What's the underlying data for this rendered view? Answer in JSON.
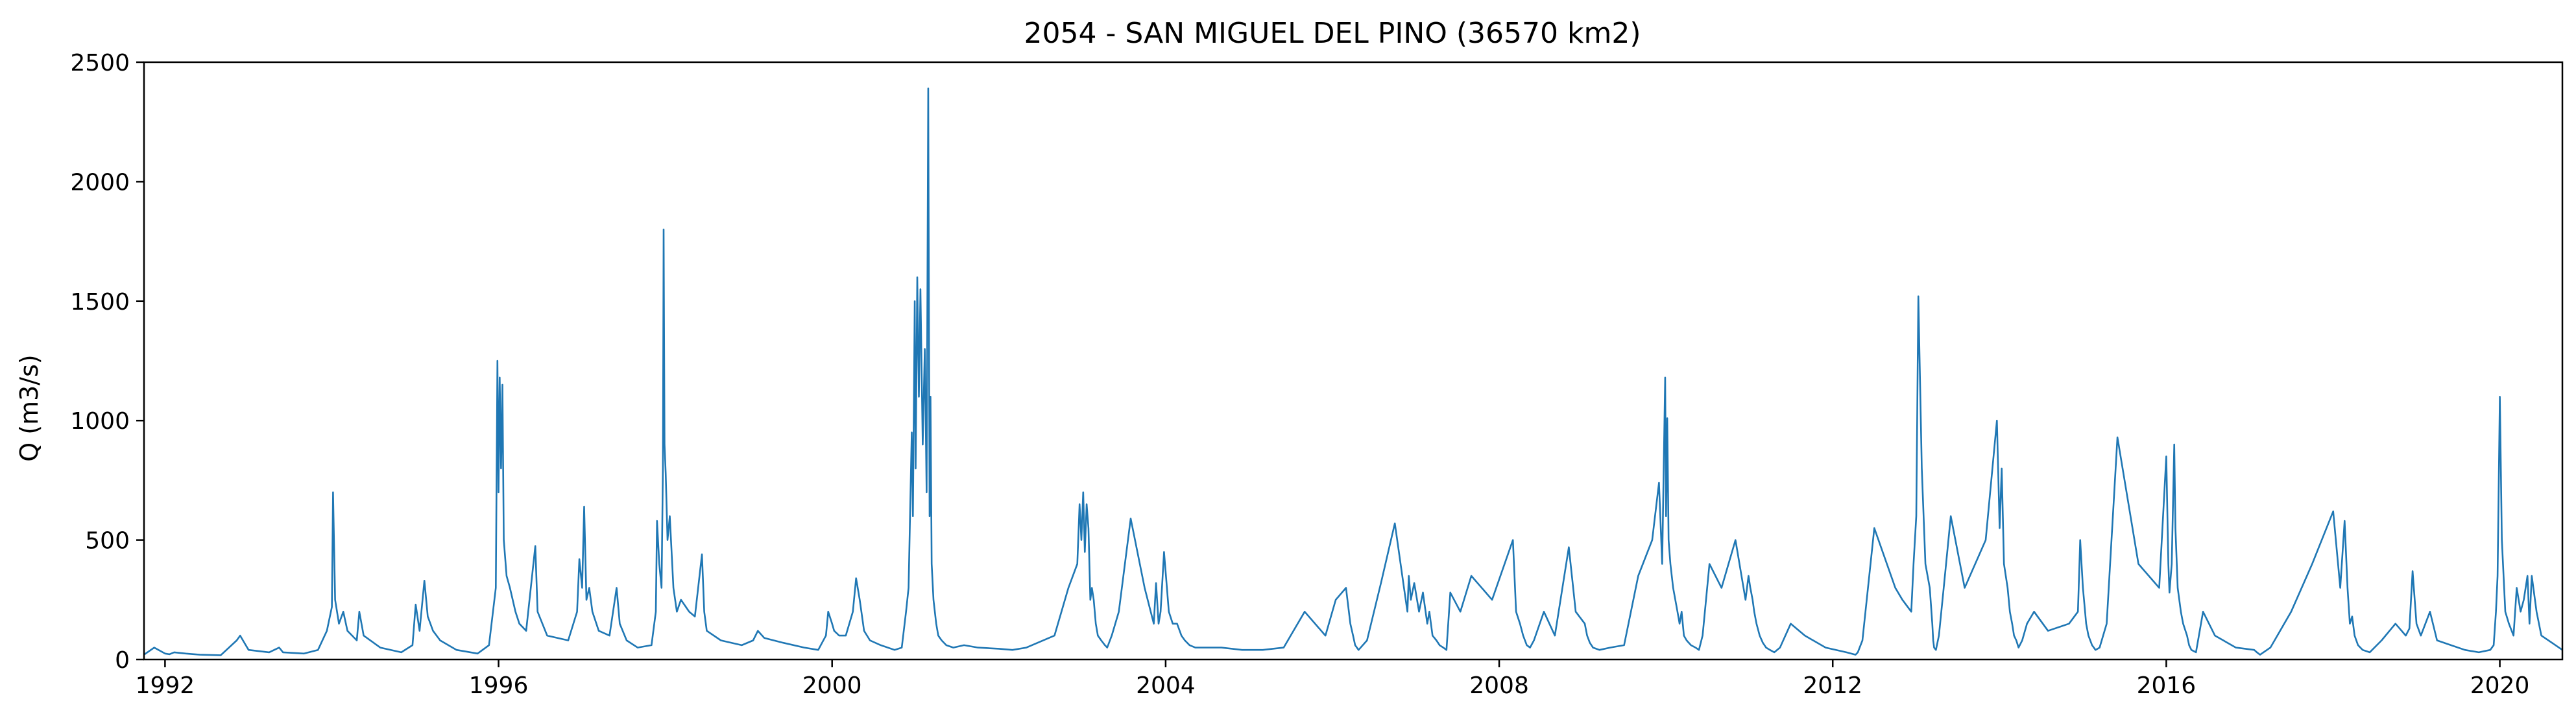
{
  "chart_data": {
    "type": "line",
    "title": "2054 - SAN MIGUEL DEL PINO (36570 km2)",
    "xlabel": "",
    "ylabel": "Q (m3/s)",
    "xlim": [
      "1991-10-01",
      "2020-10-01"
    ],
    "ylim": [
      0,
      2500
    ],
    "x_ticks": [
      "1992",
      "1996",
      "2000",
      "2004",
      "2008",
      "2012",
      "2016",
      "2020"
    ],
    "y_ticks": [
      "0",
      "500",
      "1000",
      "1500",
      "2000",
      "2500"
    ],
    "grid": false,
    "legend": "none",
    "color": "#1f77b4",
    "series": [
      {
        "x": [
          "1991-10-01",
          "1991-11-15",
          "1992-01-01",
          "1992-01-20",
          "1992-02-10",
          "1992-04-01",
          "1992-06-01",
          "1992-09-01",
          "1992-11-10",
          "1992-11-25",
          "1993-01-01",
          "1993-04-01",
          "1993-05-15",
          "1993-06-01",
          "1993-09-01",
          "1993-11-01",
          "1993-12-10",
          "1994-01-01",
          "1994-01-06",
          "1994-01-15",
          "1994-02-01",
          "1994-02-20",
          "1994-03-10",
          "1994-04-20",
          "1994-05-01",
          "1994-05-20",
          "1994-08-01",
          "1994-11-01",
          "1994-12-20",
          "1995-01-03",
          "1995-01-20",
          "1995-02-10",
          "1995-02-25",
          "1995-03-20",
          "1995-04-20",
          "1995-07-01",
          "1995-10-01",
          "1995-11-20",
          "1995-12-20",
          "1995-12-27",
          "1996-01-01",
          "1996-01-06",
          "1996-01-12",
          "1996-01-18",
          "1996-01-24",
          "1996-02-05",
          "1996-02-20",
          "1996-03-15",
          "1996-04-01",
          "1996-05-01",
          "1996-06-10",
          "1996-06-20",
          "1996-08-01",
          "1996-11-01",
          "1996-12-10",
          "1996-12-20",
          "1997-01-01",
          "1997-01-10",
          "1997-01-20",
          "1997-02-01",
          "1997-02-15",
          "1997-03-15",
          "1997-05-01",
          "1997-06-01",
          "1997-06-15",
          "1997-07-15",
          "1997-09-01",
          "1997-11-01",
          "1997-11-20",
          "1997-11-25",
          "1997-12-05",
          "1997-12-15",
          "1997-12-21",
          "1997-12-24",
          "1997-12-28",
          "1998-01-02",
          "1998-01-10",
          "1998-01-20",
          "1998-02-05",
          "1998-02-20",
          "1998-03-10",
          "1998-04-15",
          "1998-05-10",
          "1998-06-10",
          "1998-06-20",
          "1998-07-01",
          "1998-09-01",
          "1998-12-01",
          "1999-01-20",
          "1999-02-10",
          "1999-03-10",
          "1999-06-01",
          "1999-09-01",
          "1999-11-01",
          "1999-12-05",
          "1999-12-15",
          "2000-01-01",
          "2000-01-10",
          "2000-02-01",
          "2000-03-01",
          "2000-04-01",
          "2000-04-15",
          "2000-05-01",
          "2000-05-20",
          "2000-06-15",
          "2000-08-01",
          "2000-10-01",
          "2000-11-01",
          "2000-11-20",
          "2000-12-01",
          "2000-12-15",
          "2000-12-20",
          "2000-12-28",
          "2001-01-01",
          "2001-01-08",
          "2001-01-15",
          "2001-01-22",
          "2001-02-01",
          "2001-02-10",
          "2001-02-18",
          "2001-02-25",
          "2001-03-03",
          "2001-03-07",
          "2001-03-12",
          "2001-03-20",
          "2001-04-01",
          "2001-04-10",
          "2001-04-25",
          "2001-05-15",
          "2001-06-15",
          "2001-08-01",
          "2001-10-01",
          "2002-01-01",
          "2002-03-01",
          "2002-05-01",
          "2002-09-01",
          "2002-11-01",
          "2002-12-10",
          "2002-12-20",
          "2002-12-28",
          "2003-01-05",
          "2003-01-12",
          "2003-01-20",
          "2003-01-28",
          "2003-02-05",
          "2003-02-12",
          "2003-02-20",
          "2003-03-01",
          "2003-03-10",
          "2003-03-25",
          "2003-04-10",
          "2003-04-20",
          "2003-05-10",
          "2003-06-10",
          "2003-08-01",
          "2003-10-01",
          "2003-11-10",
          "2003-11-20",
          "2003-12-01",
          "2003-12-10",
          "2003-12-25",
          "2004-01-15",
          "2004-02-01",
          "2004-02-20",
          "2004-03-10",
          "2004-03-25",
          "2004-04-15",
          "2004-05-10",
          "2004-06-15",
          "2004-09-01",
          "2004-12-01",
          "2005-03-01",
          "2005-06-01",
          "2005-09-01",
          "2005-12-01",
          "2006-01-15",
          "2006-03-01",
          "2006-03-20",
          "2006-04-01",
          "2006-04-10",
          "2006-04-25",
          "2006-06-01",
          "2006-08-01",
          "2006-10-01",
          "2006-11-10",
          "2006-11-25",
          "2006-12-01",
          "2006-12-10",
          "2006-12-25",
          "2007-01-15",
          "2007-02-01",
          "2007-02-20",
          "2007-03-01",
          "2007-03-15",
          "2007-04-01",
          "2007-04-15",
          "2007-05-01",
          "2007-05-15",
          "2007-06-01",
          "2007-07-15",
          "2007-09-01",
          "2007-12-01",
          "2008-03-01",
          "2008-03-15",
          "2008-04-01",
          "2008-04-15",
          "2008-05-01",
          "2008-05-15",
          "2008-06-01",
          "2008-07-15",
          "2008-09-01",
          "2008-11-01",
          "2008-11-20",
          "2008-12-01",
          "2009-01-10",
          "2009-01-20",
          "2009-02-01",
          "2009-02-15",
          "2009-03-15",
          "2009-05-01",
          "2009-07-01",
          "2009-09-01",
          "2009-11-01",
          "2009-12-01",
          "2009-12-15",
          "2009-12-28",
          "2010-01-01",
          "2010-01-06",
          "2010-01-12",
          "2010-01-20",
          "2010-02-01",
          "2010-02-20",
          "2010-03-01",
          "2010-03-10",
          "2010-03-20",
          "2010-04-01",
          "2010-04-20",
          "2010-05-10",
          "2010-05-25",
          "2010-06-10",
          "2010-07-10",
          "2010-09-01",
          "2010-11-01",
          "2010-12-15",
          "2010-12-28",
          "2011-01-05",
          "2011-01-15",
          "2011-01-22",
          "2011-02-01",
          "2011-02-15",
          "2011-03-01",
          "2011-03-15",
          "2011-04-01",
          "2011-04-20",
          "2011-05-15",
          "2011-07-01",
          "2011-09-01",
          "2011-12-01",
          "2012-03-01",
          "2012-04-10",
          "2012-04-20",
          "2012-05-10",
          "2012-07-01",
          "2012-10-01",
          "2012-11-01",
          "2012-12-10",
          "2012-12-20",
          "2013-01-01",
          "2013-01-10",
          "2013-01-25",
          "2013-02-10",
          "2013-03-01",
          "2013-03-12",
          "2013-03-16",
          "2013-03-20",
          "2013-03-28",
          "2013-04-10",
          "2013-05-01",
          "2013-06-01",
          "2013-08-01",
          "2013-11-01",
          "2013-12-20",
          "2014-01-01",
          "2014-01-10",
          "2014-01-20",
          "2014-02-05",
          "2014-02-15",
          "2014-02-25",
          "2014-03-05",
          "2014-03-15",
          "2014-03-25",
          "2014-04-10",
          "2014-05-01",
          "2014-06-01",
          "2014-08-01",
          "2014-11-01",
          "2014-12-10",
          "2014-12-20",
          "2015-01-01",
          "2015-01-15",
          "2015-01-25",
          "2015-02-10",
          "2015-02-25",
          "2015-03-15",
          "2015-04-15",
          "2015-06-01",
          "2015-09-01",
          "2015-12-01",
          "2016-01-01",
          "2016-01-10",
          "2016-01-15",
          "2016-01-25",
          "2016-02-05",
          "2016-02-10",
          "2016-02-20",
          "2016-03-05",
          "2016-03-15",
          "2016-04-01",
          "2016-04-10",
          "2016-04-20",
          "2016-05-10",
          "2016-06-10",
          "2016-08-01",
          "2016-11-01",
          "2017-01-20",
          "2017-02-01",
          "2017-02-15",
          "2017-04-01",
          "2017-07-01",
          "2017-10-01",
          "2018-01-01",
          "2018-02-01",
          "2018-02-20",
          "2018-03-05",
          "2018-03-15",
          "2018-03-25",
          "2018-04-05",
          "2018-04-20",
          "2018-05-10",
          "2018-06-10",
          "2018-08-01",
          "2018-10-01",
          "2018-11-15",
          "2018-12-01",
          "2018-12-15",
          "2019-01-01",
          "2019-01-20",
          "2019-03-01",
          "2019-04-01",
          "2019-06-01",
          "2019-08-01",
          "2019-10-01",
          "2019-11-20",
          "2019-12-05",
          "2019-12-15",
          "2019-12-22",
          "2020-01-01",
          "2020-01-10",
          "2020-01-25",
          "2020-02-10",
          "2020-03-01",
          "2020-03-15",
          "2020-04-01",
          "2020-04-15",
          "2020-05-01",
          "2020-05-10",
          "2020-05-20",
          "2020-06-10",
          "2020-07-01",
          "2020-09-01",
          "2020-10-01"
        ],
        "y": [
          20,
          50,
          25,
          22,
          30,
          25,
          20,
          18,
          80,
          100,
          40,
          30,
          50,
          30,
          25,
          40,
          120,
          220,
          700,
          250,
          150,
          200,
          120,
          80,
          200,
          100,
          50,
          30,
          60,
          230,
          120,
          330,
          180,
          120,
          80,
          40,
          25,
          60,
          300,
          1250,
          700,
          1180,
          800,
          1150,
          500,
          350,
          300,
          200,
          150,
          120,
          475,
          200,
          100,
          80,
          200,
          420,
          300,
          640,
          250,
          300,
          200,
          120,
          100,
          300,
          150,
          80,
          50,
          60,
          200,
          580,
          400,
          300,
          800,
          1800,
          900,
          780,
          500,
          600,
          300,
          200,
          250,
          200,
          180,
          440,
          200,
          120,
          80,
          60,
          80,
          120,
          90,
          70,
          50,
          40,
          100,
          200,
          150,
          120,
          100,
          100,
          200,
          340,
          250,
          120,
          80,
          60,
          40,
          50,
          200,
          300,
          950,
          600,
          1500,
          800,
          1600,
          1100,
          1550,
          900,
          1300,
          700,
          2390,
          600,
          1100,
          400,
          250,
          150,
          100,
          80,
          60,
          50,
          60,
          50,
          45,
          40,
          50,
          100,
          300,
          400,
          650,
          500,
          700,
          450,
          650,
          550,
          250,
          300,
          250,
          150,
          100,
          80,
          60,
          50,
          100,
          200,
          590,
          300,
          150,
          320,
          150,
          200,
          450,
          200,
          150,
          150,
          100,
          80,
          60,
          50,
          50,
          50,
          40,
          40,
          50,
          200,
          100,
          250,
          300,
          150,
          100,
          60,
          40,
          80,
          320,
          570,
          300,
          200,
          350,
          250,
          320,
          200,
          280,
          150,
          200,
          100,
          80,
          60,
          50,
          40,
          280,
          200,
          350,
          250,
          500,
          200,
          150,
          100,
          60,
          50,
          80,
          200,
          100,
          470,
          300,
          200,
          150,
          100,
          70,
          50,
          40,
          50,
          60,
          350,
          500,
          740,
          400,
          1180,
          600,
          1010,
          500,
          400,
          300,
          200,
          150,
          200,
          100,
          80,
          60,
          50,
          40,
          100,
          400,
          300,
          500,
          250,
          350,
          300,
          250,
          200,
          150,
          100,
          70,
          50,
          40,
          30,
          50,
          150,
          100,
          50,
          30,
          20,
          30,
          80,
          550,
          300,
          250,
          200,
          400,
          600,
          1520,
          800,
          400,
          300,
          150,
          80,
          50,
          40,
          100,
          300,
          600,
          300,
          500,
          1000,
          550,
          800,
          400,
          300,
          200,
          150,
          100,
          80,
          50,
          80,
          150,
          200,
          120,
          150,
          200,
          500,
          300,
          150,
          100,
          60,
          40,
          50,
          150,
          930,
          400,
          300,
          850,
          400,
          280,
          400,
          900,
          550,
          300,
          200,
          150,
          100,
          60,
          40,
          30,
          200,
          100,
          50,
          40,
          30,
          20,
          50,
          200,
          400,
          620,
          300,
          580,
          300,
          150,
          180,
          100,
          60,
          40,
          30,
          80,
          150,
          100,
          130,
          370,
          150,
          100,
          200,
          80,
          60,
          40,
          30,
          40,
          60,
          200,
          350,
          1100,
          500,
          200,
          150,
          100,
          300,
          200,
          250,
          350,
          150,
          350,
          200,
          100,
          60,
          40
        ]
      }
    ]
  }
}
